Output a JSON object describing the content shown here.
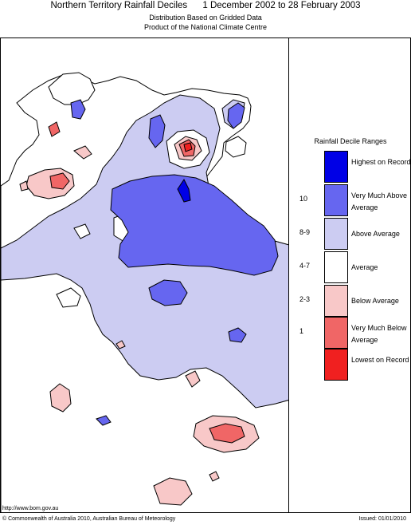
{
  "header": {
    "title": "Northern Territory Rainfall Deciles      1 December 2002 to 28 February 2003",
    "subtitle_1": "Distribution Based on Gridded Data",
    "subtitle_2": "Product of the National Climate Centre"
  },
  "legend": {
    "title": "Rainfall Decile Ranges",
    "rows": [
      {
        "decile": "",
        "label": "Highest on Record",
        "color": "#0000e6"
      },
      {
        "decile": "10",
        "label": "Very Much Above Average",
        "color": "#6666f0"
      },
      {
        "decile": "8-9",
        "label": "Above Average",
        "color": "#ccccf2"
      },
      {
        "decile": "4-7",
        "label": "Average",
        "color": "#ffffff"
      },
      {
        "decile": "2-3",
        "label": "Below Average",
        "color": "#f8c8c8"
      },
      {
        "decile": "1",
        "label": "Very Much Below Average",
        "color": "#f06666"
      },
      {
        "decile": "",
        "label": "Lowest on Record",
        "color": "#f02020"
      }
    ]
  },
  "footer": {
    "url": "http://www.bom.gov.au",
    "copyright": "© Commonwealth of Australia 2010, Australian Bureau of Meteorology",
    "issued": "Issued: 01/01/2010"
  }
}
